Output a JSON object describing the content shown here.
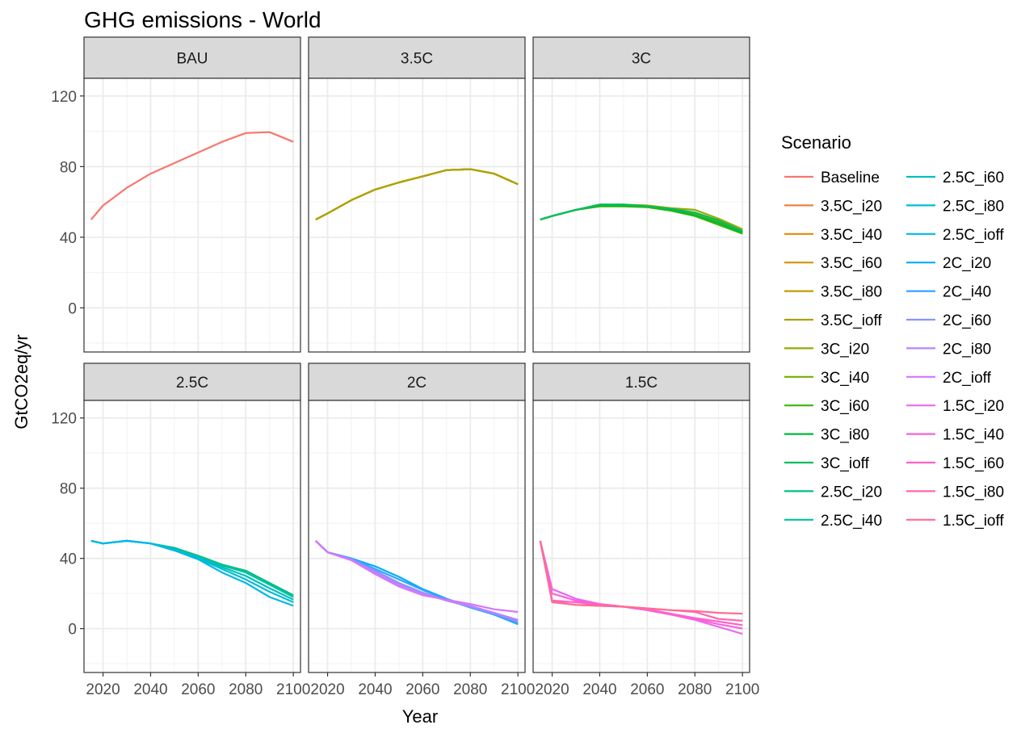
{
  "chart_data": {
    "type": "line",
    "title": "GHG emissions - World",
    "xlabel": "Year",
    "ylabel": "GtCO2eq/yr",
    "xlim": [
      2012,
      2103
    ],
    "ylim": [
      -25,
      130
    ],
    "x_ticks": [
      2020,
      2040,
      2060,
      2080,
      2100
    ],
    "y_ticks": [
      0,
      40,
      80,
      120
    ],
    "grid": true,
    "legend": {
      "title": "Scenario",
      "position": "right",
      "entries": [
        {
          "name": "Baseline",
          "color": "#F8766D"
        },
        {
          "name": "3.5C_i20",
          "color": "#EE8043"
        },
        {
          "name": "3.5C_i40",
          "color": "#E28A00"
        },
        {
          "name": "3.5C_i60",
          "color": "#D09400"
        },
        {
          "name": "3.5C_i80",
          "color": "#BD9D00"
        },
        {
          "name": "3.5C_ioff",
          "color": "#ABA300"
        },
        {
          "name": "3C_i20",
          "color": "#93AA00"
        },
        {
          "name": "3C_i40",
          "color": "#70B000"
        },
        {
          "name": "3C_i60",
          "color": "#39B600"
        },
        {
          "name": "3C_i80",
          "color": "#00BA38"
        },
        {
          "name": "3C_ioff",
          "color": "#00BD5F"
        },
        {
          "name": "2.5C_i20",
          "color": "#00C07F"
        },
        {
          "name": "2.5C_i40",
          "color": "#00C19F"
        },
        {
          "name": "2.5C_i60",
          "color": "#00BFBD"
        },
        {
          "name": "2.5C_i80",
          "color": "#00BCD8"
        },
        {
          "name": "2.5C_ioff",
          "color": "#00B6EB"
        },
        {
          "name": "2C_i20",
          "color": "#00ADFA"
        },
        {
          "name": "2C_i40",
          "color": "#35A2FF"
        },
        {
          "name": "2C_i60",
          "color": "#8B93FF"
        },
        {
          "name": "2C_i80",
          "color": "#B983FF"
        },
        {
          "name": "2C_ioff",
          "color": "#D774FD"
        },
        {
          "name": "1.5C_i20",
          "color": "#EB69F0"
        },
        {
          "name": "1.5C_i40",
          "color": "#F862DF"
        },
        {
          "name": "1.5C_i60",
          "color": "#FF62C6"
        },
        {
          "name": "1.5C_i80",
          "color": "#FF65AE"
        },
        {
          "name": "1.5C_ioff",
          "color": "#FF6C91"
        }
      ]
    },
    "panels": [
      {
        "title": "BAU",
        "series": [
          {
            "name": "Baseline",
            "x": [
              2015,
              2020,
              2030,
              2040,
              2050,
              2060,
              2070,
              2080,
              2090,
              2100
            ],
            "y": [
              50,
              58,
              68,
              76,
              82,
              88,
              94,
              99,
              99.5,
              94
            ]
          }
        ]
      },
      {
        "title": "3.5C",
        "series": [
          {
            "name": "3.5C_i20",
            "x": [
              2015,
              2020,
              2030,
              2040,
              2050,
              2060,
              2070,
              2080,
              2090,
              2100
            ],
            "y": [
              50,
              53.5,
              61,
              67,
              71,
              74.5,
              78,
              78.5,
              76,
              70
            ]
          },
          {
            "name": "3.5C_i40",
            "x": [
              2015,
              2020,
              2030,
              2040,
              2050,
              2060,
              2070,
              2080,
              2090,
              2100
            ],
            "y": [
              50,
              53.5,
              61,
              67,
              71,
              74.5,
              78,
              78.5,
              76,
              70
            ]
          },
          {
            "name": "3.5C_i60",
            "x": [
              2015,
              2020,
              2030,
              2040,
              2050,
              2060,
              2070,
              2080,
              2090,
              2100
            ],
            "y": [
              50,
              53.5,
              61,
              67,
              71,
              74.5,
              78,
              78.5,
              76,
              70
            ]
          },
          {
            "name": "3.5C_i80",
            "x": [
              2015,
              2020,
              2030,
              2040,
              2050,
              2060,
              2070,
              2080,
              2090,
              2100
            ],
            "y": [
              50,
              53.5,
              61,
              67,
              71,
              74.5,
              78,
              78.5,
              76,
              70
            ]
          },
          {
            "name": "3.5C_ioff",
            "x": [
              2015,
              2020,
              2030,
              2040,
              2050,
              2060,
              2070,
              2080,
              2090,
              2100
            ],
            "y": [
              50,
              53.5,
              61,
              67,
              71,
              74.5,
              78,
              78.5,
              76,
              70
            ]
          }
        ]
      },
      {
        "title": "3C",
        "series": [
          {
            "name": "3C_i20",
            "x": [
              2015,
              2020,
              2030,
              2040,
              2050,
              2060,
              2070,
              2080,
              2090,
              2100
            ],
            "y": [
              50,
              52,
              55.5,
              58.5,
              58.5,
              58,
              56.5,
              55.5,
              50.5,
              44.5
            ]
          },
          {
            "name": "3C_i40",
            "x": [
              2015,
              2020,
              2030,
              2040,
              2050,
              2060,
              2070,
              2080,
              2090,
              2100
            ],
            "y": [
              50,
              52,
              55.5,
              58,
              58,
              57.5,
              56,
              53,
              49,
              43
            ]
          },
          {
            "name": "3C_i60",
            "x": [
              2015,
              2020,
              2030,
              2040,
              2050,
              2060,
              2070,
              2080,
              2090,
              2100
            ],
            "y": [
              50,
              52,
              55.5,
              57.5,
              57.5,
              57,
              55,
              52,
              47,
              42
            ]
          },
          {
            "name": "3C_i80",
            "x": [
              2015,
              2020,
              2030,
              2040,
              2050,
              2060,
              2070,
              2080,
              2090,
              2100
            ],
            "y": [
              50,
              52,
              55.5,
              58,
              58,
              57.5,
              55.5,
              52.5,
              48,
              42.5
            ]
          },
          {
            "name": "3C_ioff",
            "x": [
              2015,
              2020,
              2030,
              2040,
              2050,
              2060,
              2070,
              2080,
              2090,
              2100
            ],
            "y": [
              50,
              52,
              55.5,
              58.5,
              58.5,
              57.5,
              56,
              54,
              49.5,
              43.5
            ]
          }
        ]
      },
      {
        "title": "2.5C",
        "series": [
          {
            "name": "2.5C_i20",
            "x": [
              2015,
              2020,
              2030,
              2040,
              2050,
              2060,
              2070,
              2080,
              2090,
              2100
            ],
            "y": [
              50,
              48.5,
              50,
              48.5,
              46,
              41.5,
              36.5,
              33,
              26,
              19
            ]
          },
          {
            "name": "2.5C_i40",
            "x": [
              2015,
              2020,
              2030,
              2040,
              2050,
              2060,
              2070,
              2080,
              2090,
              2100
            ],
            "y": [
              50,
              48.5,
              50,
              48.5,
              45.5,
              41,
              36,
              32,
              25,
              18
            ]
          },
          {
            "name": "2.5C_i60",
            "x": [
              2015,
              2020,
              2030,
              2040,
              2050,
              2060,
              2070,
              2080,
              2090,
              2100
            ],
            "y": [
              50,
              48.5,
              50,
              48.5,
              45,
              40.5,
              35,
              30,
              23,
              16.5
            ]
          },
          {
            "name": "2.5C_i80",
            "x": [
              2015,
              2020,
              2030,
              2040,
              2050,
              2060,
              2070,
              2080,
              2090,
              2100
            ],
            "y": [
              50,
              48.5,
              50,
              48.5,
              45,
              40,
              34,
              28,
              21,
              15
            ]
          },
          {
            "name": "2.5C_ioff",
            "x": [
              2015,
              2020,
              2030,
              2040,
              2050,
              2060,
              2070,
              2080,
              2090,
              2100
            ],
            "y": [
              50,
              48.5,
              50,
              48.5,
              44.5,
              39.5,
              32,
              26,
              18,
              13
            ]
          }
        ]
      },
      {
        "title": "2C",
        "series": [
          {
            "name": "2C_i20",
            "x": [
              2015,
              2020,
              2030,
              2040,
              2050,
              2060,
              2070,
              2080,
              2090,
              2100
            ],
            "y": [
              50,
              43.5,
              40,
              35.5,
              29.5,
              22.5,
              17,
              12.5,
              8,
              2.5
            ]
          },
          {
            "name": "2C_i40",
            "x": [
              2015,
              2020,
              2030,
              2040,
              2050,
              2060,
              2070,
              2080,
              2090,
              2100
            ],
            "y": [
              50,
              43.5,
              40,
              34,
              28,
              22,
              16.5,
              12,
              8,
              3
            ]
          },
          {
            "name": "2C_i60",
            "x": [
              2015,
              2020,
              2030,
              2040,
              2050,
              2060,
              2070,
              2080,
              2090,
              2100
            ],
            "y": [
              50,
              43.5,
              39.5,
              33,
              26,
              20.5,
              16,
              12.5,
              8.5,
              4
            ]
          },
          {
            "name": "2C_i80",
            "x": [
              2015,
              2020,
              2030,
              2040,
              2050,
              2060,
              2070,
              2080,
              2090,
              2100
            ],
            "y": [
              50,
              43.5,
              39,
              32,
              25,
              20,
              16,
              13,
              9,
              5
            ]
          },
          {
            "name": "2C_ioff",
            "x": [
              2015,
              2020,
              2030,
              2040,
              2050,
              2060,
              2070,
              2080,
              2090,
              2100
            ],
            "y": [
              50,
              43.5,
              39,
              31,
              24,
              19,
              16.5,
              14,
              11,
              9.5
            ]
          }
        ]
      },
      {
        "title": "1.5C",
        "series": [
          {
            "name": "1.5C_i20",
            "x": [
              2015,
              2020,
              2030,
              2040,
              2050,
              2060,
              2070,
              2080,
              2090,
              2100
            ],
            "y": [
              50,
              22.5,
              17,
              14,
              12.5,
              10.5,
              8,
              5,
              1,
              -3
            ]
          },
          {
            "name": "1.5C_i40",
            "x": [
              2015,
              2020,
              2030,
              2040,
              2050,
              2060,
              2070,
              2080,
              2090,
              2100
            ],
            "y": [
              50,
              20,
              16,
              14,
              12.5,
              10.5,
              8,
              5.5,
              2.5,
              0
            ]
          },
          {
            "name": "1.5C_i60",
            "x": [
              2015,
              2020,
              2030,
              2040,
              2050,
              2060,
              2070,
              2080,
              2090,
              2100
            ],
            "y": [
              50,
              16,
              15,
              13.5,
              12.5,
              11,
              8.5,
              6,
              4,
              2
            ]
          },
          {
            "name": "1.5C_i80",
            "x": [
              2015,
              2020,
              2030,
              2040,
              2050,
              2060,
              2070,
              2080,
              2090,
              2100
            ],
            "y": [
              50,
              15.5,
              13.5,
              13,
              12.5,
              11.5,
              10.5,
              9.5,
              5.5,
              4.5
            ]
          },
          {
            "name": "1.5C_ioff",
            "x": [
              2015,
              2020,
              2030,
              2040,
              2050,
              2060,
              2070,
              2080,
              2090,
              2100
            ],
            "y": [
              50,
              15,
              13.5,
              13,
              12.5,
              11.5,
              10.5,
              10,
              9,
              8.5
            ]
          }
        ]
      }
    ]
  }
}
